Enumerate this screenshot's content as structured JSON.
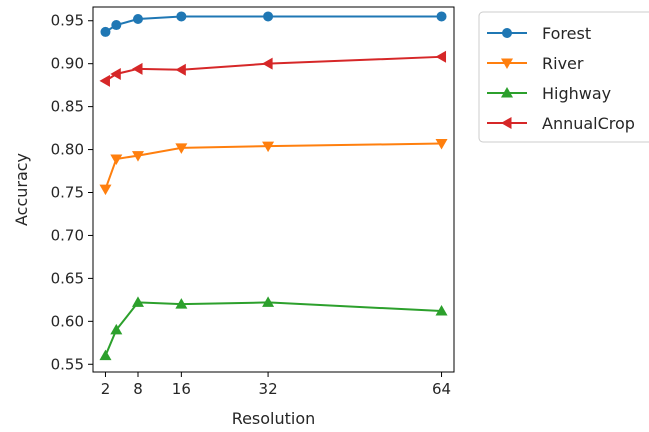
{
  "chart_data": {
    "type": "line",
    "xlabel": "Resolution",
    "ylabel": "Accuracy",
    "x": [
      2,
      4,
      8,
      16,
      32,
      64
    ],
    "xticks": [
      2,
      8,
      16,
      32,
      64
    ],
    "xtick_labels": [
      "2",
      "8",
      "16",
      "32",
      "64"
    ],
    "xlim": [
      -0.3,
      66.3
    ],
    "ylim": [
      0.541,
      0.966
    ],
    "yticks": [
      0.55,
      0.6,
      0.65,
      0.7,
      0.75,
      0.8,
      0.85,
      0.9,
      0.95
    ],
    "ytick_labels": [
      "0.55",
      "0.60",
      "0.65",
      "0.70",
      "0.75",
      "0.80",
      "0.85",
      "0.90",
      "0.95"
    ],
    "grid": false,
    "legend_position": "outside-right-top",
    "series": [
      {
        "name": "Forest",
        "color": "#1f77b4",
        "marker": "circle",
        "values": [
          0.937,
          0.945,
          0.952,
          0.955,
          0.955,
          0.955
        ]
      },
      {
        "name": "River",
        "color": "#ff7f0e",
        "marker": "triangle-down",
        "values": [
          0.754,
          0.789,
          0.793,
          0.802,
          0.804,
          0.807
        ]
      },
      {
        "name": "Highway",
        "color": "#2ca02c",
        "marker": "triangle-up",
        "values": [
          0.56,
          0.59,
          0.622,
          0.62,
          0.622,
          0.612
        ]
      },
      {
        "name": "AnnualCrop",
        "color": "#d62728",
        "marker": "triangle-left",
        "values": [
          0.88,
          0.888,
          0.894,
          0.893,
          0.9,
          0.908
        ]
      }
    ]
  }
}
